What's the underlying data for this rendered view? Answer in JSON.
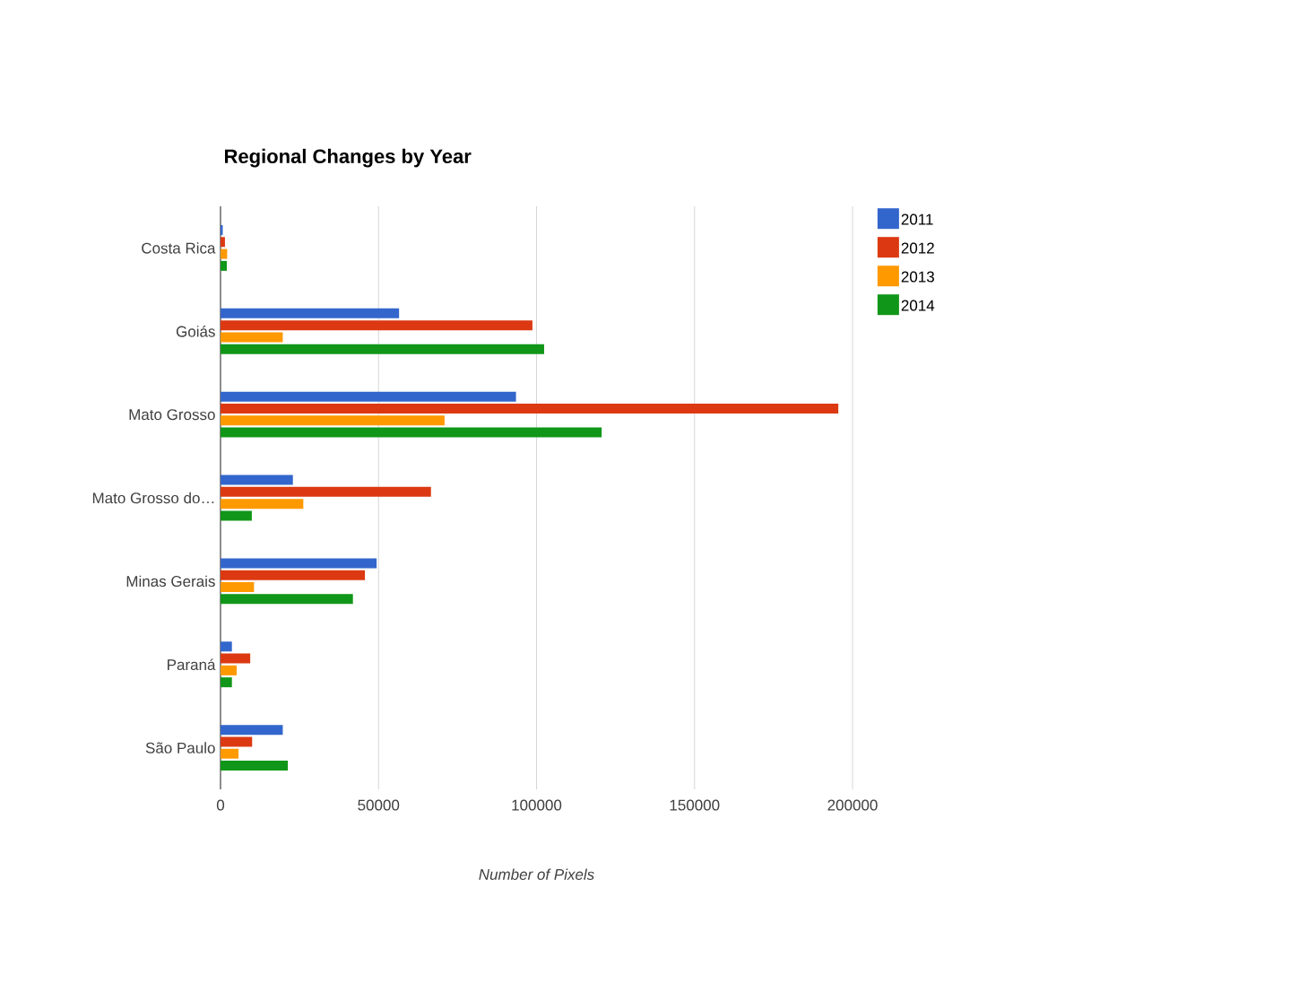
{
  "chart_data": {
    "type": "bar",
    "orientation": "horizontal",
    "title": "Regional Changes by Year",
    "xlabel": "*Number of Pixels*",
    "categories": [
      "Costa Rica",
      "Goiás",
      "Mato Grosso",
      "Mato Grosso do…",
      "Minas Gerais",
      "Paraná",
      "São Paulo"
    ],
    "series": [
      {
        "name": "2011",
        "color": "#3366cc",
        "values": [
          700,
          56500,
          93500,
          22900,
          49400,
          3600,
          19700
        ]
      },
      {
        "name": "2012",
        "color": "#dc3912",
        "values": [
          1400,
          98700,
          195500,
          66600,
          45700,
          9400,
          10000
        ]
      },
      {
        "name": "2013",
        "color": "#ff9900",
        "values": [
          2100,
          19700,
          70900,
          26200,
          10600,
          5100,
          5700
        ]
      },
      {
        "name": "2014",
        "color": "#109618",
        "values": [
          2000,
          102400,
          120600,
          9900,
          41900,
          3600,
          21300
        ]
      }
    ],
    "xlim": [
      0,
      200000
    ],
    "xticks": [
      0,
      50000,
      100000,
      150000,
      200000
    ],
    "grid": "x",
    "legend": "top right"
  }
}
